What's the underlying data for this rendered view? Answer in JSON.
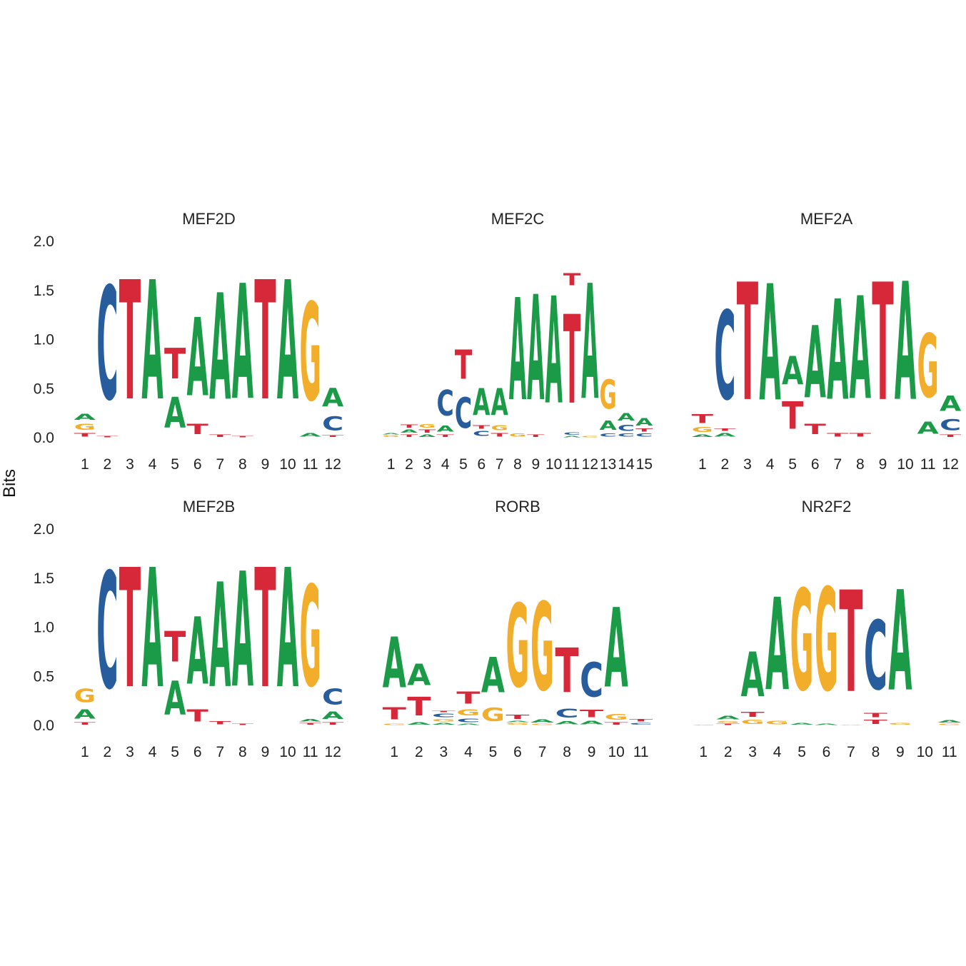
{
  "chart_data": {
    "type": "sequence-logo",
    "ylabel": "Bits",
    "ylim": [
      0,
      2
    ],
    "yticks": [
      "0.0",
      "0.5",
      "1.0",
      "1.5",
      "2.0"
    ],
    "letter_colors": {
      "A": "#1b9a48",
      "C": "#275d9c",
      "G": "#f2ad2a",
      "T": "#d62838"
    },
    "layout": {
      "rows": 2,
      "cols": 3
    },
    "panels": [
      {
        "title": "MEF2D",
        "positions": [
          "1",
          "2",
          "3",
          "4",
          "5",
          "6",
          "7",
          "8",
          "9",
          "10",
          "11",
          "12"
        ],
        "columns": [
          [
            [
              "T",
              0.06
            ],
            [
              "G",
              0.1
            ],
            [
              "A",
              0.1
            ]
          ],
          [
            [
              "T",
              0.02
            ],
            [
              "C",
              1.85
            ]
          ],
          [
            [
              "T",
              1.95
            ]
          ],
          [
            [
              "A",
              1.95
            ]
          ],
          [
            [
              "A",
              0.5
            ],
            [
              "T",
              0.5
            ]
          ],
          [
            [
              "T",
              0.17
            ],
            [
              "A",
              1.28
            ]
          ],
          [
            [
              "T",
              0.04
            ],
            [
              "A",
              1.74
            ]
          ],
          [
            [
              "T",
              0.02
            ],
            [
              "A",
              1.88
            ]
          ],
          [
            [
              "T",
              1.95
            ]
          ],
          [
            [
              "A",
              1.95
            ]
          ],
          [
            [
              "A",
              0.06
            ],
            [
              "G",
              1.6
            ]
          ],
          [
            [
              "T",
              0.03
            ],
            [
              "C",
              0.23
            ],
            [
              "A",
              0.3
            ]
          ]
        ]
      },
      {
        "title": "MEF2C",
        "positions": [
          "1",
          "2",
          "3",
          "4",
          "5",
          "6",
          "7",
          "8",
          "9",
          "10",
          "11",
          "12",
          "13",
          "14",
          "15"
        ],
        "columns": [
          [
            [
              "G",
              0.03
            ],
            [
              "A",
              0.02
            ]
          ],
          [
            [
              "T",
              0.04
            ],
            [
              "A",
              0.05
            ],
            [
              "T",
              0.05
            ]
          ],
          [
            [
              "A",
              0.04
            ],
            [
              "T",
              0.05
            ],
            [
              "G",
              0.06
            ]
          ],
          [
            [
              "T",
              0.04
            ],
            [
              "A",
              0.1
            ],
            [
              "C",
              0.42
            ]
          ],
          [
            [
              "C",
              0.5
            ],
            [
              "T",
              0.48
            ]
          ],
          [
            [
              "C",
              0.08
            ],
            [
              "T",
              0.06
            ],
            [
              "A",
              0.44
            ]
          ],
          [
            [
              "T",
              0.06
            ],
            [
              "G",
              0.08
            ],
            [
              "A",
              0.44
            ]
          ],
          [
            [
              "G",
              0.05
            ],
            [
              "A",
              1.67
            ]
          ],
          [
            [
              "T",
              0.04
            ],
            [
              "A",
              1.72
            ]
          ],
          [
            [
              "A",
              1.75
            ]
          ],
          [
            [
              "A",
              0.02
            ],
            [
              "C",
              0.04
            ],
            [
              "T",
              1.45
            ],
            [
              "T",
              0.2
            ]
          ],
          [
            [
              "G",
              0.02
            ],
            [
              "A",
              1.88
            ]
          ],
          [
            [
              "C",
              0.05
            ],
            [
              "A",
              0.15
            ],
            [
              "G",
              0.48
            ]
          ],
          [
            [
              "C",
              0.05
            ],
            [
              "C",
              0.1
            ],
            [
              "A",
              0.12
            ]
          ],
          [
            [
              "C",
              0.05
            ],
            [
              "T",
              0.05
            ],
            [
              "A",
              0.12
            ]
          ]
        ]
      },
      {
        "title": "MEF2A",
        "positions": [
          "1",
          "2",
          "3",
          "4",
          "5",
          "6",
          "7",
          "8",
          "9",
          "10",
          "11",
          "12"
        ],
        "columns": [
          [
            [
              "A",
              0.04
            ],
            [
              "G",
              0.08
            ],
            [
              "T",
              0.14
            ]
          ],
          [
            [
              "A",
              0.06
            ],
            [
              "T",
              0.04
            ],
            [
              "C",
              1.45
            ]
          ],
          [
            [
              "T",
              1.92
            ]
          ],
          [
            [
              "A",
              1.9
            ]
          ],
          [
            [
              "T",
              0.45
            ],
            [
              "A",
              0.46
            ]
          ],
          [
            [
              "T",
              0.17
            ],
            [
              "A",
              1.18
            ]
          ],
          [
            [
              "T",
              0.06
            ],
            [
              "A",
              1.64
            ]
          ],
          [
            [
              "T",
              0.06
            ],
            [
              "A",
              1.68
            ]
          ],
          [
            [
              "T",
              1.92
            ]
          ],
          [
            [
              "A",
              1.93
            ]
          ],
          [
            [
              "A",
              0.2
            ],
            [
              "G",
              1.04
            ]
          ],
          [
            [
              "T",
              0.04
            ],
            [
              "C",
              0.18
            ],
            [
              "A",
              0.25
            ]
          ]
        ]
      },
      {
        "title": "MEF2B",
        "positions": [
          "1",
          "2",
          "3",
          "4",
          "5",
          "6",
          "7",
          "8",
          "9",
          "10",
          "11",
          "12"
        ],
        "columns": [
          [
            [
              "T",
              0.04
            ],
            [
              "A",
              0.15
            ],
            [
              "G",
              0.22
            ]
          ],
          [
            [
              "C",
              1.9
            ]
          ],
          [
            [
              "T",
              1.95
            ]
          ],
          [
            [
              "A",
              1.95
            ]
          ],
          [
            [
              "A",
              0.55
            ],
            [
              "T",
              0.5
            ]
          ],
          [
            [
              "T",
              0.2
            ],
            [
              "A",
              1.1
            ]
          ],
          [
            [
              "T",
              0.05
            ],
            [
              "A",
              1.71
            ]
          ],
          [
            [
              "T",
              0.02
            ],
            [
              "A",
              1.88
            ]
          ],
          [
            [
              "T",
              1.95
            ]
          ],
          [
            [
              "A",
              1.95
            ]
          ],
          [
            [
              "T",
              0.03
            ],
            [
              "A",
              0.04
            ],
            [
              "G",
              1.65
            ]
          ],
          [
            [
              "T",
              0.04
            ],
            [
              "A",
              0.12
            ],
            [
              "C",
              0.26
            ]
          ]
        ]
      },
      {
        "title": "RORB",
        "positions": [
          "1",
          "2",
          "3",
          "4",
          "5",
          "6",
          "7",
          "8",
          "9",
          "10",
          "11"
        ],
        "columns": [
          [
            [
              "G",
              0.02
            ],
            [
              "T",
              0.2
            ],
            [
              "A",
              0.83
            ]
          ],
          [
            [
              "A",
              0.04
            ],
            [
              "T",
              0.3
            ],
            [
              "A",
              0.35
            ]
          ],
          [
            [
              "A",
              0.03
            ],
            [
              "G",
              0.04
            ],
            [
              "C",
              0.06
            ],
            [
              "T",
              0.02
            ]
          ],
          [
            [
              "A",
              0.02
            ],
            [
              "C",
              0.06
            ],
            [
              "G",
              0.1
            ],
            [
              "T",
              0.2
            ]
          ],
          [
            [
              "G",
              0.22
            ],
            [
              "A",
              0.58
            ]
          ],
          [
            [
              "G",
              0.03
            ],
            [
              "A",
              0.02
            ],
            [
              "T",
              0.07
            ],
            [
              "G",
              1.36
            ]
          ],
          [
            [
              "G",
              0.02
            ],
            [
              "A",
              0.05
            ],
            [
              "G",
              1.44
            ]
          ],
          [
            [
              "A",
              0.05
            ],
            [
              "C",
              0.14
            ],
            [
              "T",
              0.73
            ]
          ],
          [
            [
              "A",
              0.06
            ],
            [
              "T",
              0.12
            ],
            [
              "C",
              0.56
            ]
          ],
          [
            [
              "T",
              0.04
            ],
            [
              "G",
              0.09
            ],
            [
              "A",
              1.3
            ]
          ],
          [
            [
              "C",
              0.03
            ],
            [
              "T",
              0.04
            ]
          ]
        ]
      },
      {
        "title": "NR2F2",
        "positions": [
          "1",
          "2",
          "3",
          "4",
          "5",
          "6",
          "7",
          "8",
          "9",
          "10",
          "11"
        ],
        "columns": [
          [
            [
              "C",
              0.01
            ]
          ],
          [
            [
              "T",
              0.02
            ],
            [
              "G",
              0.03
            ],
            [
              "A",
              0.06
            ]
          ],
          [
            [
              "G",
              0.07
            ],
            [
              "T",
              0.08
            ],
            [
              "A",
              0.73
            ]
          ],
          [
            [
              "G",
              0.06
            ],
            [
              "A",
              1.51
            ]
          ],
          [
            [
              "A",
              0.03
            ],
            [
              "G",
              1.65
            ]
          ],
          [
            [
              "A",
              0.02
            ],
            [
              "G",
              1.68
            ]
          ],
          [
            [
              "A",
              0.01
            ],
            [
              "T",
              1.66
            ]
          ],
          [
            [
              "T",
              0.07
            ],
            [
              "T",
              0.07
            ],
            [
              "C",
              1.13
            ]
          ],
          [
            [
              "G",
              0.03
            ],
            [
              "A",
              1.64
            ]
          ],
          [],
          [
            [
              "G",
              0.02
            ],
            [
              "A",
              0.04
            ]
          ]
        ]
      }
    ]
  }
}
